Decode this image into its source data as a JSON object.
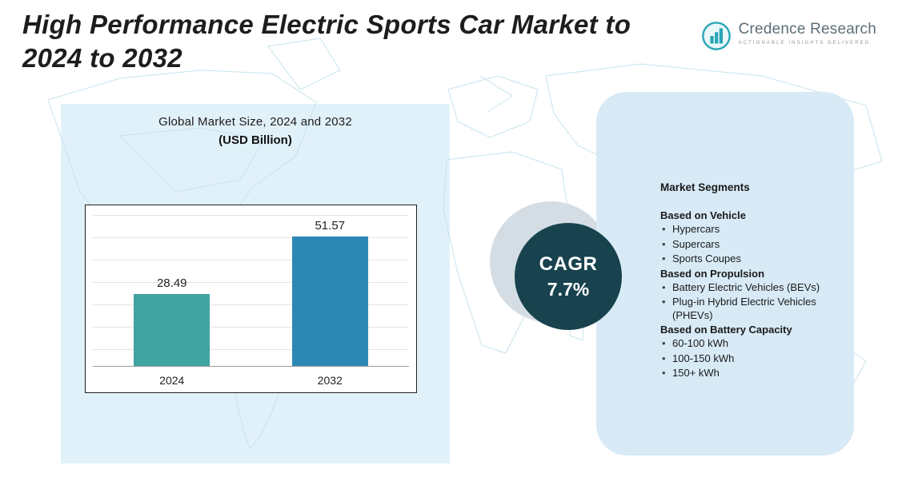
{
  "header": {
    "title_line1": "High Performance Electric Sports Car Market to",
    "title_line2": "2024 to 2032",
    "logo": {
      "name": "Credence Research",
      "tagline": "Actionable Insights Delivered",
      "accent_color": "#2aa6b5",
      "text_color": "#5d6f79"
    }
  },
  "chart_data": {
    "type": "bar",
    "title": "Global Market Size, 2024 and 2032",
    "subtitle": "(USD Billion)",
    "categories": [
      "2024",
      "2032"
    ],
    "values": [
      28.49,
      51.57
    ],
    "value_labels": [
      "28.49",
      "51.57"
    ],
    "bar_colors": [
      "#3fa3a0",
      "#2d87b5"
    ],
    "ylim": [
      0,
      60
    ],
    "grid": true,
    "legend": "none"
  },
  "cagr": {
    "label": "CAGR",
    "value": "7.7%",
    "circle_color": "#17424e"
  },
  "segments": {
    "heading": "Market Segments",
    "groups": [
      {
        "title": "Based on Vehicle",
        "items": [
          "Hypercars",
          "Supercars",
          "Sports Coupes"
        ]
      },
      {
        "title": "Based on Propulsion",
        "items": [
          "Battery Electric Vehicles (BEVs)",
          "Plug-in Hybrid Electric Vehicles (PHEVs)"
        ]
      },
      {
        "title": "Based on Battery Capacity",
        "items": [
          "60-100 kWh",
          "100-150 kWh",
          "150+ kWh"
        ]
      }
    ]
  }
}
